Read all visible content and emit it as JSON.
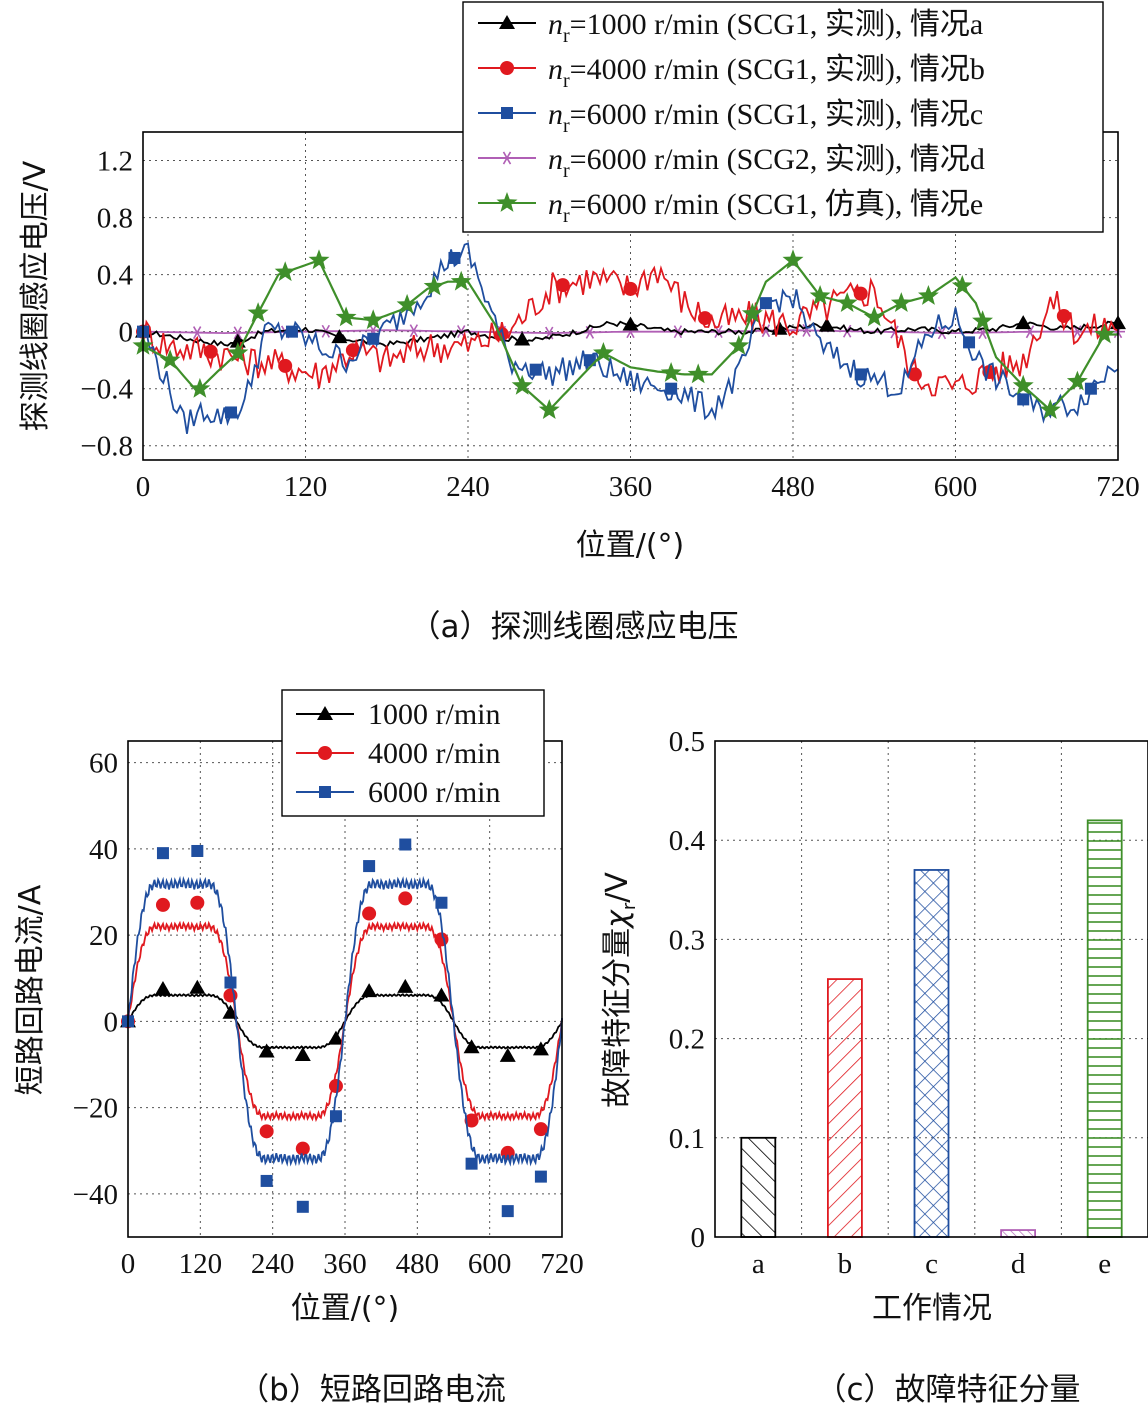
{
  "chart_data": [
    {
      "id": "a",
      "type": "line",
      "caption": "（a）探测线圈感应电压",
      "xlabel": "位置/(°)",
      "ylabel": "探测线圈感应电压/V",
      "xlim": [
        0,
        720
      ],
      "ylim": [
        -0.9,
        1.4
      ],
      "xticks": [
        0,
        120,
        240,
        360,
        480,
        600,
        720
      ],
      "yticks": [
        -0.8,
        -0.4,
        0,
        0.4,
        0.8,
        1.2
      ],
      "ytick_labels": [
        "−0.8",
        "−0.4",
        "0",
        "0.4",
        "0.8",
        "1.2"
      ],
      "grid": true,
      "legend_position": "top-right",
      "series": [
        {
          "name": "nr=1000 r/min (SCG1, 实测), 情况a",
          "legend_prefix": "n",
          "legend_sub": "r",
          "legend_rest": "=1000 r/min (SCG1, 实测), 情况a",
          "color": "#000000",
          "marker": "triangle",
          "x": [
            0,
            20,
            40,
            60,
            70,
            90,
            120,
            150,
            180,
            210,
            240,
            270,
            290,
            320,
            345,
            360,
            390,
            420,
            450,
            480,
            500,
            520,
            540,
            570,
            600,
            630,
            650,
            680,
            700,
            720
          ],
          "y": [
            0,
            -0.03,
            -0.06,
            -0.09,
            -0.07,
            0.0,
            0.02,
            -0.05,
            -0.09,
            -0.05,
            0.0,
            -0.05,
            -0.06,
            0.0,
            0.06,
            0.05,
            0.0,
            0.0,
            0.0,
            0.03,
            0.05,
            0.02,
            0.0,
            0.02,
            0.0,
            0.02,
            0.06,
            0.02,
            0.04,
            0.06
          ],
          "marker_x": [
            0,
            70,
            145,
            280,
            360,
            470,
            505,
            650,
            720
          ]
        },
        {
          "name": "nr=4000 r/min (SCG1, 实测), 情况b",
          "legend_prefix": "n",
          "legend_sub": "r",
          "legend_rest": "=4000 r/min (SCG1, 实测), 情况b",
          "color": "#e0191f",
          "marker": "circle",
          "x": [
            0,
            20,
            50,
            80,
            105,
            130,
            155,
            180,
            210,
            240,
            270,
            300,
            330,
            360,
            380,
            400,
            420,
            450,
            480,
            510,
            540,
            570,
            600,
            620,
            650,
            670,
            690,
            720
          ],
          "y": [
            0,
            -0.1,
            -0.14,
            -0.2,
            -0.24,
            -0.3,
            -0.13,
            -0.2,
            -0.1,
            -0.1,
            0.0,
            0.3,
            0.38,
            0.3,
            0.45,
            0.2,
            0.06,
            0.1,
            0.05,
            0.2,
            0.3,
            -0.3,
            -0.4,
            -0.3,
            -0.2,
            0.22,
            0.0,
            0.05
          ],
          "marker_x": [
            0,
            50,
            105,
            155,
            265,
            310,
            360,
            415,
            530,
            570,
            625,
            680
          ]
        },
        {
          "name": "nr=6000 r/min (SCG1, 实测), 情况c",
          "legend_prefix": "n",
          "legend_sub": "r",
          "legend_rest": "=6000 r/min (SCG1, 实测), 情况c",
          "color": "#1f4e9f",
          "marker": "square",
          "x": [
            0,
            15,
            30,
            45,
            60,
            75,
            90,
            110,
            130,
            150,
            170,
            190,
            210,
            225,
            240,
            255,
            270,
            300,
            330,
            360,
            390,
            420,
            440,
            460,
            480,
            500,
            530,
            560,
            580,
            600,
            620,
            640,
            660,
            690,
            720
          ],
          "y": [
            0,
            -0.3,
            -0.65,
            -0.55,
            -0.6,
            -0.5,
            0.0,
            0.0,
            -0.1,
            -0.2,
            -0.05,
            0.1,
            0.3,
            0.5,
            0.55,
            0.2,
            -0.2,
            -0.3,
            -0.2,
            -0.35,
            -0.4,
            -0.55,
            -0.3,
            0.2,
            0.25,
            -0.1,
            -0.3,
            -0.4,
            0.0,
            0.1,
            -0.25,
            -0.4,
            -0.55,
            -0.5,
            -0.2
          ],
          "marker_x": [
            0,
            65,
            110,
            170,
            230,
            290,
            330,
            390,
            460,
            530,
            610,
            650,
            700
          ]
        },
        {
          "name": "nr=6000 r/min (SCG2, 实测), 情况d",
          "legend_prefix": "n",
          "legend_sub": "r",
          "legend_rest": "=6000 r/min (SCG2, 实测), 情况d",
          "color": "#b05fb5",
          "marker": "asterisk",
          "x": [
            0,
            60,
            120,
            180,
            240,
            300,
            360,
            420,
            480,
            540,
            600,
            660,
            720
          ],
          "y": [
            0,
            -0.01,
            0.0,
            0.01,
            0.0,
            -0.01,
            0.0,
            0.0,
            0.01,
            0.0,
            -0.01,
            0.0,
            0.0
          ],
          "marker_x": [
            0,
            40,
            70,
            105,
            135,
            170,
            200,
            235,
            265,
            300,
            330,
            360,
            395,
            425,
            460,
            490,
            520,
            555,
            590,
            620,
            655,
            690,
            720
          ]
        },
        {
          "name": "nr=6000 r/min (SCG1, 仿真), 情况e",
          "legend_prefix": "n",
          "legend_sub": "r",
          "legend_rest": "=6000 r/min (SCG1, 仿真), 情况e",
          "color": "#3f8f2a",
          "marker": "star",
          "x": [
            0,
            20,
            40,
            55,
            70,
            85,
            100,
            115,
            130,
            150,
            170,
            190,
            210,
            225,
            240,
            260,
            280,
            300,
            320,
            340,
            360,
            380,
            400,
            420,
            440,
            460,
            480,
            500,
            520,
            540,
            560,
            580,
            600,
            615,
            630,
            650,
            670,
            690,
            710
          ],
          "y": [
            -0.1,
            -0.2,
            -0.42,
            -0.28,
            -0.15,
            0.13,
            0.4,
            0.45,
            0.5,
            0.1,
            0.08,
            0.15,
            0.3,
            0.35,
            0.35,
            0.05,
            -0.38,
            -0.55,
            -0.35,
            -0.15,
            -0.25,
            -0.28,
            -0.3,
            -0.3,
            -0.1,
            0.35,
            0.5,
            0.25,
            0.2,
            0.1,
            0.2,
            0.25,
            0.38,
            0.2,
            -0.18,
            -0.38,
            -0.55,
            -0.35,
            -0.02
          ],
          "marker_x": [
            0,
            20,
            42,
            70,
            85,
            105,
            130,
            150,
            170,
            195,
            215,
            235,
            280,
            300,
            340,
            390,
            410,
            440,
            450,
            480,
            500,
            520,
            540,
            560,
            580,
            605,
            620,
            650,
            670,
            690,
            710
          ]
        }
      ]
    },
    {
      "id": "b",
      "type": "line",
      "caption": "（b）短路回路电流",
      "xlabel": "位置/(°)",
      "ylabel": "短路回路电流/A",
      "xlim": [
        0,
        720
      ],
      "ylim": [
        -50,
        65
      ],
      "xticks": [
        0,
        120,
        240,
        360,
        480,
        600,
        720
      ],
      "yticks": [
        -40,
        -20,
        0,
        20,
        40,
        60
      ],
      "ytick_labels": [
        "−40",
        "−20",
        "0",
        "20",
        "40",
        "60"
      ],
      "grid": true,
      "legend_position": "top-center",
      "series": [
        {
          "name": "1000 r/min",
          "color": "#000000",
          "marker": "triangle",
          "amplitude": 8,
          "markers": [
            [
              0,
              0
            ],
            [
              58,
              7.5
            ],
            [
              115,
              7.8
            ],
            [
              170,
              2
            ],
            [
              230,
              -7
            ],
            [
              290,
              -7.8
            ],
            [
              345,
              -4
            ],
            [
              400,
              7
            ],
            [
              460,
              8
            ],
            [
              520,
              6
            ],
            [
              570,
              -6
            ],
            [
              630,
              -8
            ],
            [
              685,
              -6.5
            ]
          ]
        },
        {
          "name": "4000 r/min",
          "color": "#e0191f",
          "marker": "circle",
          "amplitude": 29,
          "markers": [
            [
              0,
              0
            ],
            [
              58,
              27
            ],
            [
              115,
              27.5
            ],
            [
              170,
              6
            ],
            [
              230,
              -25.5
            ],
            [
              290,
              -29.5
            ],
            [
              345,
              -15
            ],
            [
              400,
              25
            ],
            [
              460,
              28.5
            ],
            [
              520,
              19
            ],
            [
              570,
              -23
            ],
            [
              630,
              -30.5
            ],
            [
              685,
              -25
            ]
          ]
        },
        {
          "name": "6000 r/min",
          "color": "#1f4e9f",
          "marker": "square",
          "amplitude": 42,
          "markers": [
            [
              0,
              0
            ],
            [
              58,
              39
            ],
            [
              115,
              39.5
            ],
            [
              170,
              9
            ],
            [
              230,
              -37
            ],
            [
              290,
              -43
            ],
            [
              345,
              -22
            ],
            [
              400,
              36
            ],
            [
              460,
              41
            ],
            [
              520,
              27.5
            ],
            [
              570,
              -33
            ],
            [
              630,
              -44
            ],
            [
              685,
              -36
            ]
          ]
        }
      ]
    },
    {
      "id": "c",
      "type": "bar",
      "caption": "（c）故障特征分量",
      "xlabel": "工作情况",
      "ylabel_text": "故障特征分量",
      "ylabel_symbol": "χ",
      "ylabel_sub": "r",
      "ylabel_unit": "/V",
      "ylim": [
        0,
        0.5
      ],
      "yticks": [
        0,
        0.1,
        0.2,
        0.3,
        0.4,
        0.5
      ],
      "ytick_labels": [
        "0",
        "0.1",
        "0.2",
        "0.3",
        "0.4",
        "0.5"
      ],
      "grid": true,
      "categories": [
        "a",
        "b",
        "c",
        "d",
        "e"
      ],
      "values": [
        0.1,
        0.26,
        0.37,
        0.007,
        0.42
      ],
      "colors": [
        "#000000",
        "#e0191f",
        "#1f4e9f",
        "#b05fb5",
        "#3f8f2a"
      ],
      "patterns": [
        "diag-right",
        "diag-left",
        "cross",
        "diag-right",
        "horizontal"
      ]
    }
  ]
}
